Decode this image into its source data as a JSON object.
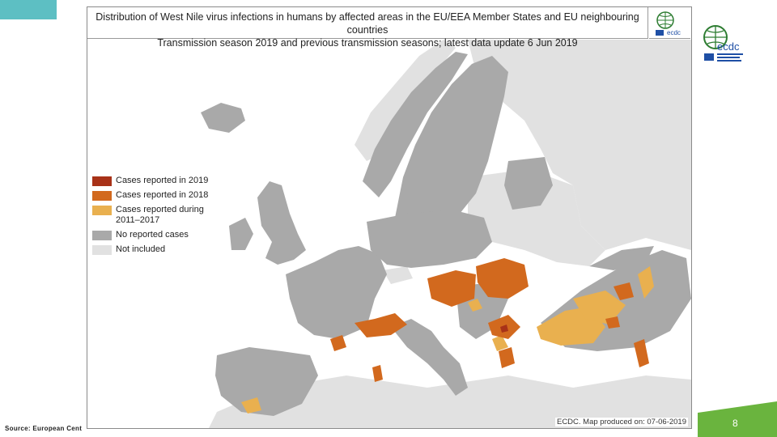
{
  "map": {
    "title_line_1": "Distribution of West Nile virus infections in humans by affected areas in the EU/EEA Member States and EU neighbouring countries",
    "title_line_2": "Transmission season 2019 and previous transmission seasons; latest data update 6 Jun 2019",
    "produced_note": "ECDC. Map produced on: 07-06-2019",
    "colors": {
      "sea": "#ffffff",
      "no_cases": "#a9a9a9",
      "not_included": "#e1e1e1",
      "cases_2019": "#a83218",
      "cases_2018": "#d2691e",
      "cases_2011_2017": "#e9b04f"
    }
  },
  "legend": {
    "items": [
      {
        "label": "Cases reported in 2019",
        "color": "#a83218"
      },
      {
        "label": "Cases reported in 2018",
        "color": "#d2691e"
      },
      {
        "label": "Cases reported during",
        "label_2": "2011–2017",
        "color": "#e9b04f"
      },
      {
        "label": "No reported cases",
        "color": "#a9a9a9"
      },
      {
        "label": "Not included",
        "color": "#e1e1e1"
      }
    ]
  },
  "logo": {
    "text": "ecdc",
    "icon": "ecdc-globe-logo"
  },
  "footer": {
    "source": "Source: European Cent",
    "page_number": "8"
  }
}
